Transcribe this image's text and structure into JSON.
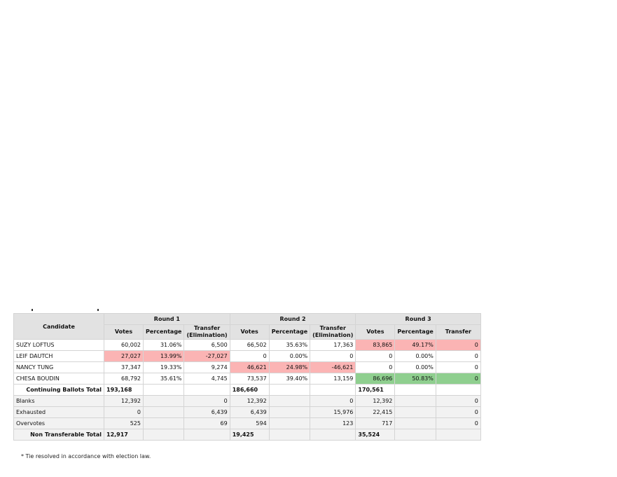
{
  "headers": {
    "candidate": "Candidate",
    "rounds": [
      "Round 1",
      "Round 2",
      "Round 3"
    ],
    "sub": {
      "r1": [
        "Votes",
        "Percentage",
        "Transfer (Elimination)"
      ],
      "r2": [
        "Votes",
        "Percentage",
        "Transfer (Elimination)"
      ],
      "r3": [
        "Votes",
        "Percentage",
        "Transfer"
      ]
    }
  },
  "rows": [
    {
      "name": "SUZY LOFTUS",
      "cells": [
        "60,002",
        "31.06%",
        "6,500",
        "66,502",
        "35.63%",
        "17,363",
        "83,865",
        "49.17%",
        "0"
      ]
    },
    {
      "name": "LEIF DAUTCH",
      "cells": [
        "27,027",
        "13.99%",
        "-27,027",
        "0",
        "0.00%",
        "0",
        "0",
        "0.00%",
        "0"
      ]
    },
    {
      "name": "NANCY TUNG",
      "cells": [
        "37,347",
        "19.33%",
        "9,274",
        "46,621",
        "24.98%",
        "-46,621",
        "0",
        "0.00%",
        "0"
      ]
    },
    {
      "name": "CHESA BOUDIN",
      "cells": [
        "68,792",
        "35.61%",
        "4,745",
        "73,537",
        "39.40%",
        "13,159",
        "86,696",
        "50.83%",
        "0"
      ]
    },
    {
      "name": "Continuing Ballots Total",
      "cells": [
        "193,168",
        "",
        "",
        "186,660",
        "",
        "",
        "170,561",
        "",
        ""
      ]
    },
    {
      "name": "Blanks",
      "cells": [
        "12,392",
        "",
        "0",
        "12,392",
        "",
        "0",
        "12,392",
        "",
        "0"
      ]
    },
    {
      "name": "Exhausted",
      "cells": [
        "0",
        "",
        "6,439",
        "6,439",
        "",
        "15,976",
        "22,415",
        "",
        "0"
      ]
    },
    {
      "name": "Overvotes",
      "cells": [
        "525",
        "",
        "69",
        "594",
        "",
        "123",
        "717",
        "",
        "0"
      ]
    },
    {
      "name": "Non Transferable Total",
      "cells": [
        "12,917",
        "",
        "",
        "19,425",
        "",
        "",
        "35,524",
        "",
        ""
      ]
    }
  ],
  "highlight_colors": {
    "eliminated": "#fbb4b4",
    "winner": "#8fcf8f"
  },
  "footnote": "* Tie resolved in accordance with election law."
}
